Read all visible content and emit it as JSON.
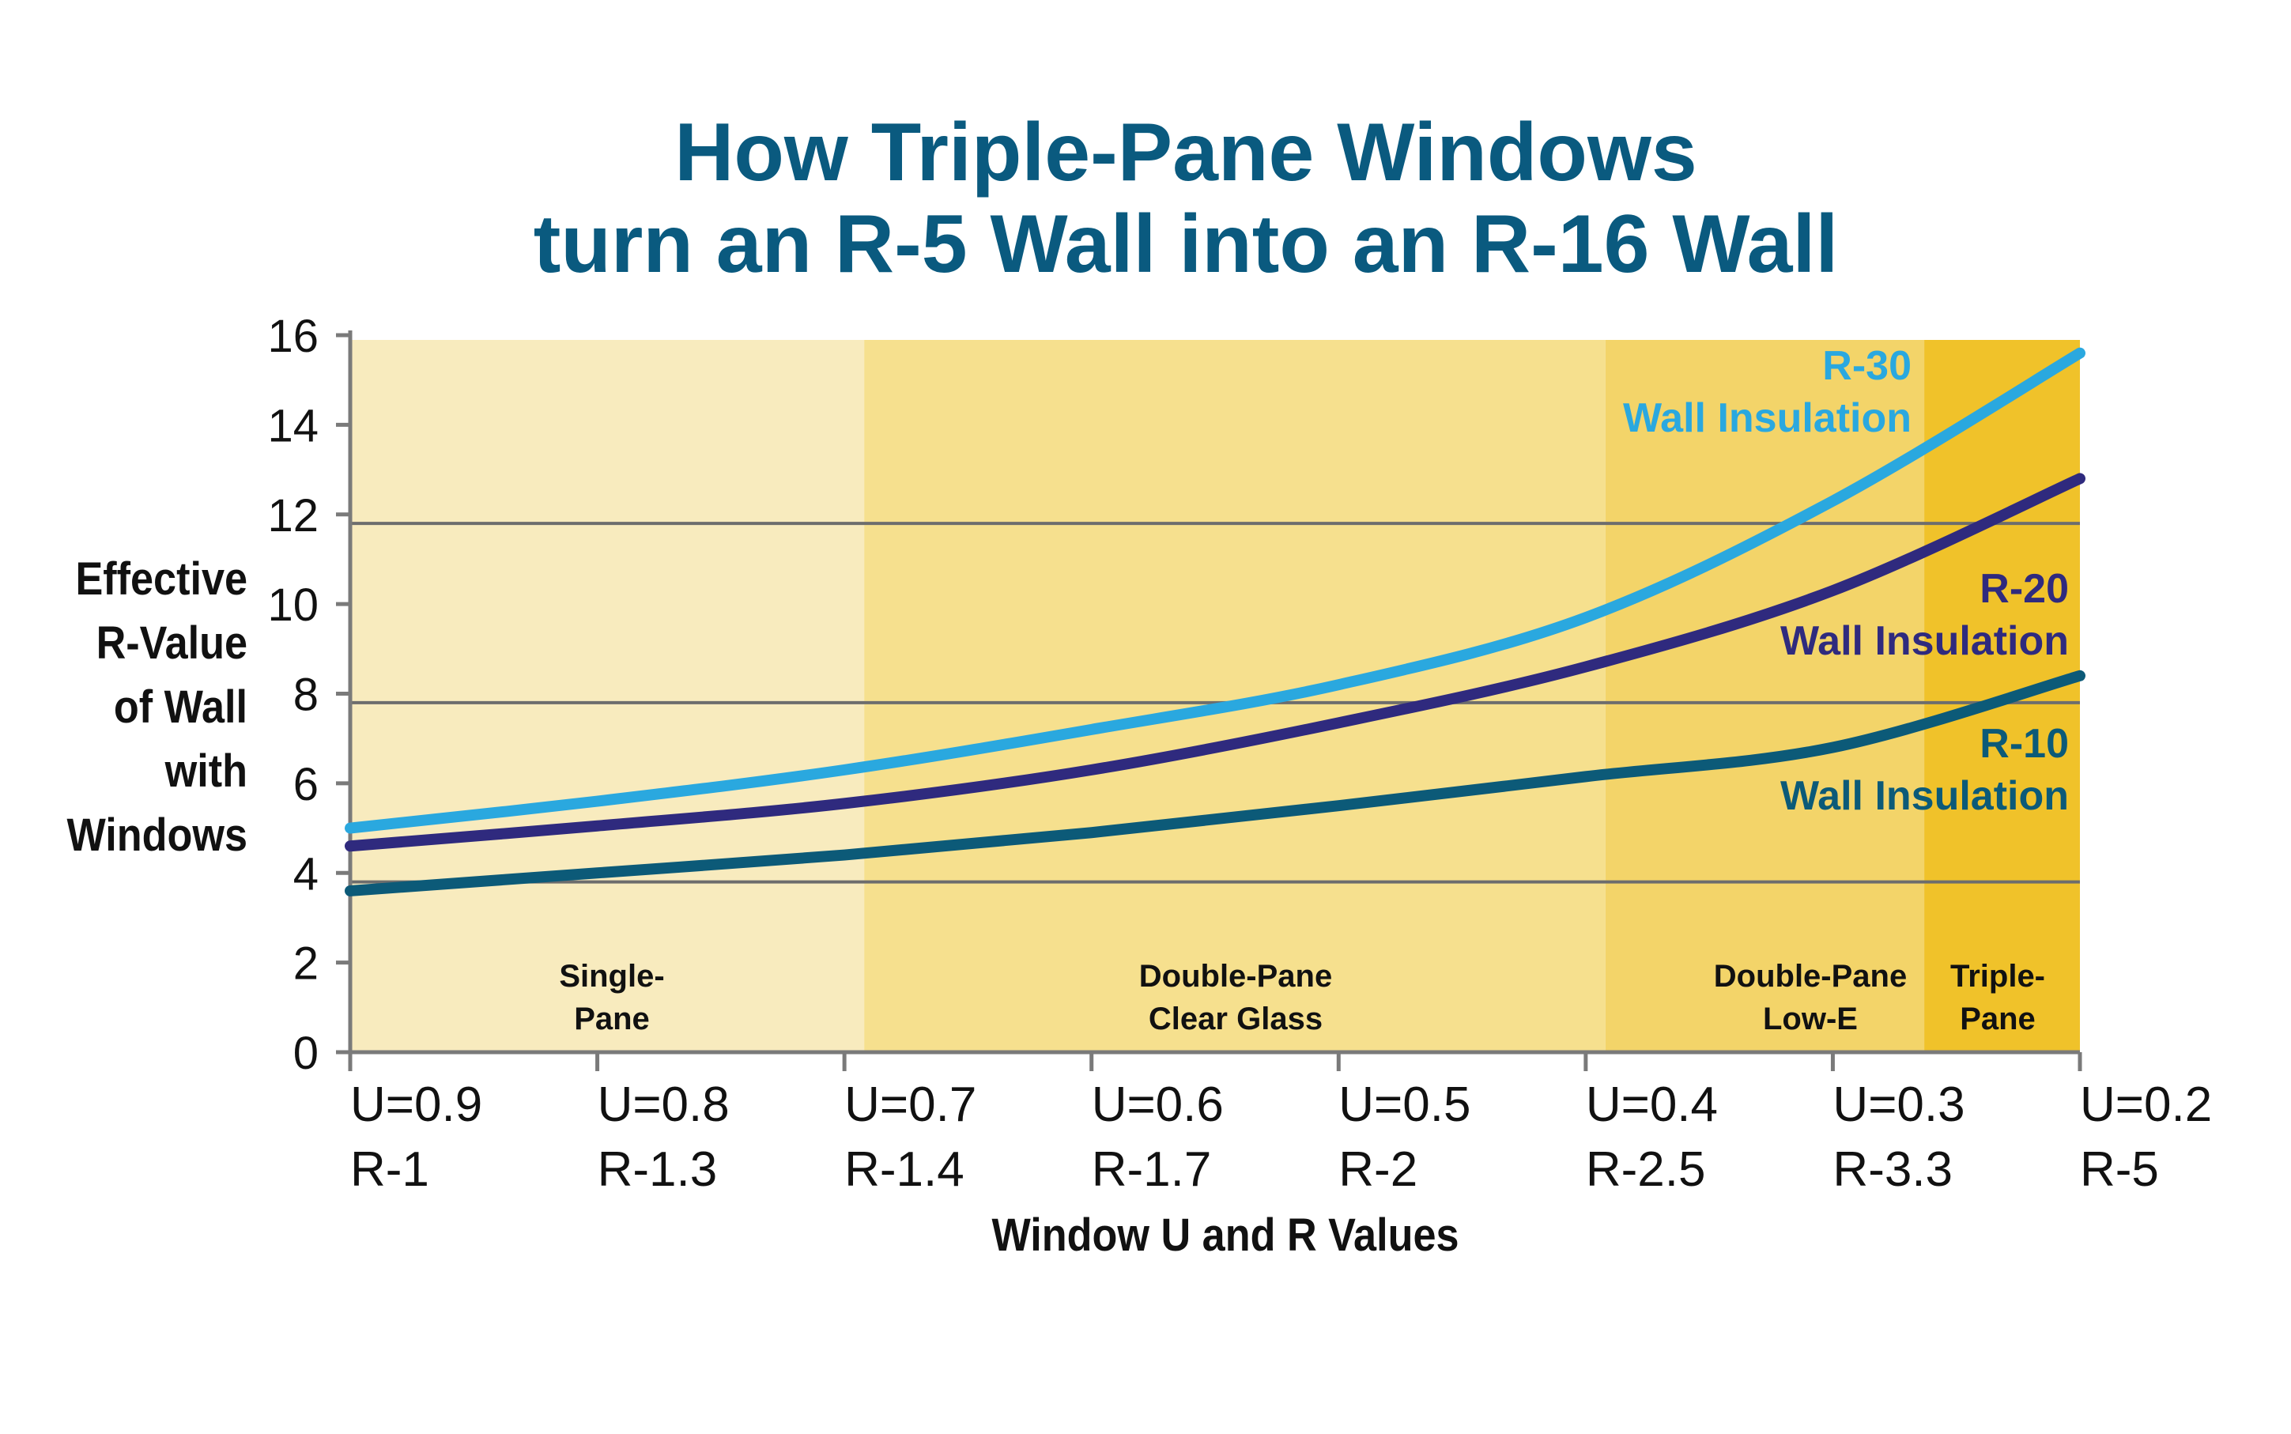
{
  "chart_data": {
    "type": "line",
    "title": [
      "How Triple-Pane Windows",
      "turn an R-5 Wall into an R-16 Wall"
    ],
    "xlabel": "Window U and R Values",
    "ylabel": [
      "Effective",
      "R-Value",
      "of Wall",
      "with",
      "Windows"
    ],
    "ylim": [
      0,
      16
    ],
    "yticks": [
      0,
      2,
      4,
      6,
      8,
      10,
      12,
      14,
      16
    ],
    "grid_lines_y": [
      3.8,
      7.8,
      11.8
    ],
    "x_categories": [
      {
        "u": "U=0.9",
        "r": "R-1"
      },
      {
        "u": "U=0.8",
        "r": "R-1.3"
      },
      {
        "u": "U=0.7",
        "r": "R-1.4"
      },
      {
        "u": "U=0.6",
        "r": "R-1.7"
      },
      {
        "u": "U=0.5",
        "r": "R-2"
      },
      {
        "u": "U=0.4",
        "r": "R-2.5"
      },
      {
        "u": "U=0.3",
        "r": "R-3.3"
      },
      {
        "u": "U=0.2",
        "r": "R-5"
      }
    ],
    "bands": [
      {
        "label": [
          "Single-",
          "Pane"
        ],
        "from": 0,
        "to": 2.08,
        "color": "#f8ebbe"
      },
      {
        "label": [
          "Double-Pane",
          "Clear Glass"
        ],
        "from": 2.08,
        "to": 5.08,
        "color": "#f6e08e"
      },
      {
        "label": [
          "Double-Pane",
          "Low-E"
        ],
        "from": 5.08,
        "to": 6.37,
        "color": "#f3d469"
      },
      {
        "label": [
          "Triple-",
          "Pane"
        ],
        "from": 6.37,
        "to": 7.0,
        "color": "#f0c22a"
      }
    ],
    "series": [
      {
        "name": [
          "R-30",
          "Wall Insulation"
        ],
        "color": "#2aa8df",
        "x": [
          0,
          1,
          2,
          3,
          4,
          5,
          6,
          7
        ],
        "y": [
          5.0,
          5.6,
          6.3,
          7.2,
          8.2,
          9.7,
          12.3,
          15.6
        ]
      },
      {
        "name": [
          "R-20",
          "Wall Insulation"
        ],
        "color": "#2f2a7e",
        "x": [
          0,
          1,
          2,
          3,
          4,
          5,
          6,
          7
        ],
        "y": [
          4.6,
          5.05,
          5.55,
          6.3,
          7.35,
          8.6,
          10.3,
          12.8
        ]
      },
      {
        "name": [
          "R-10",
          "Wall Insulation"
        ],
        "color": "#0c5a78",
        "x": [
          0,
          1,
          2,
          3,
          4,
          5,
          6,
          7
        ],
        "y": [
          3.6,
          4.0,
          4.4,
          4.9,
          5.5,
          6.15,
          6.8,
          8.4
        ]
      }
    ]
  }
}
